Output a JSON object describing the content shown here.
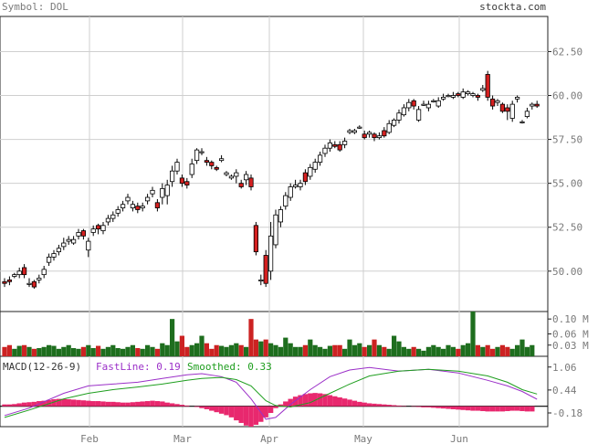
{
  "header": {
    "symbol_label": "Symbol: DOL",
    "site": "stockta.com"
  },
  "chart_data": [
    {
      "type": "candlestick",
      "title": "",
      "ylim": [
        47.7,
        64.5
      ],
      "yticks": [
        "62.50",
        "60.00",
        "57.50",
        "55.00",
        "52.50",
        "50.00"
      ],
      "x_months": [
        "Feb",
        "Mar",
        "Apr",
        "May",
        "Jun"
      ],
      "grid": true,
      "colors": {
        "up": "#ffffff",
        "down": "#d42020",
        "wick": "#000000"
      },
      "candles": [
        [
          49.4,
          49.3,
          49.6,
          49.1
        ],
        [
          49.5,
          49.4,
          49.7,
          49.2
        ],
        [
          49.7,
          49.8,
          49.9,
          49.6
        ],
        [
          49.8,
          50.0,
          50.2,
          49.6
        ],
        [
          50.2,
          49.8,
          50.4,
          49.6
        ],
        [
          49.3,
          49.3,
          49.6,
          49.1
        ],
        [
          49.4,
          49.1,
          49.5,
          49.0
        ],
        [
          49.5,
          49.6,
          49.8,
          49.3
        ],
        [
          49.8,
          50.1,
          50.3,
          49.6
        ],
        [
          50.5,
          50.8,
          51.0,
          50.3
        ],
        [
          50.8,
          51.0,
          51.2,
          50.6
        ],
        [
          51.1,
          51.3,
          51.5,
          50.9
        ],
        [
          51.4,
          51.6,
          51.9,
          51.2
        ],
        [
          51.7,
          51.8,
          52.0,
          51.5
        ],
        [
          51.6,
          51.8,
          52.0,
          51.5
        ],
        [
          52.0,
          52.2,
          52.4,
          51.8
        ],
        [
          52.3,
          52.0,
          52.4,
          51.8
        ],
        [
          51.2,
          51.7,
          51.9,
          50.8
        ],
        [
          52.2,
          52.4,
          52.6,
          52.0
        ],
        [
          52.6,
          52.4,
          52.7,
          52.1
        ],
        [
          52.3,
          52.6,
          52.8,
          52.1
        ],
        [
          52.8,
          53.0,
          53.2,
          52.6
        ],
        [
          53.0,
          53.2,
          53.4,
          52.8
        ],
        [
          53.3,
          53.5,
          53.7,
          53.1
        ],
        [
          53.6,
          53.8,
          54.0,
          53.4
        ],
        [
          54.0,
          54.2,
          54.4,
          53.8
        ],
        [
          53.6,
          53.8,
          54.0,
          53.4
        ],
        [
          53.7,
          53.5,
          53.9,
          53.3
        ],
        [
          53.6,
          53.7,
          53.9,
          53.4
        ],
        [
          54.0,
          54.2,
          54.4,
          53.8
        ],
        [
          54.4,
          54.6,
          54.8,
          54.2
        ],
        [
          53.9,
          53.6,
          54.1,
          53.4
        ],
        [
          54.2,
          54.7,
          55.0,
          53.8
        ],
        [
          54.3,
          54.9,
          55.2,
          53.8
        ],
        [
          55.1,
          55.7,
          56.0,
          54.8
        ],
        [
          55.7,
          56.2,
          56.4,
          55.5
        ],
        [
          55.3,
          55.0,
          55.5,
          54.8
        ],
        [
          55.1,
          54.9,
          55.3,
          54.7
        ],
        [
          55.5,
          56.1,
          56.4,
          55.3
        ],
        [
          56.3,
          56.9,
          57.0,
          56.1
        ],
        [
          56.8,
          56.8,
          57.0,
          56.6
        ],
        [
          56.3,
          56.2,
          56.5,
          56.0
        ],
        [
          56.2,
          56.0,
          56.3,
          55.8
        ],
        [
          55.9,
          55.8,
          56.0,
          55.7
        ],
        [
          56.3,
          56.4,
          56.6,
          56.2
        ],
        [
          55.5,
          55.6,
          55.7,
          55.4
        ],
        [
          55.3,
          55.4,
          55.5,
          55.2
        ],
        [
          55.4,
          55.6,
          55.8,
          55.0
        ],
        [
          55.0,
          54.8,
          55.2,
          54.7
        ],
        [
          55.2,
          55.5,
          55.7,
          54.9
        ],
        [
          55.3,
          54.8,
          55.5,
          54.6
        ],
        [
          52.6,
          51.1,
          52.8,
          50.9
        ],
        [
          49.5,
          49.5,
          49.8,
          49.2
        ],
        [
          50.9,
          49.3,
          51.2,
          49.1
        ],
        [
          50.0,
          52.0,
          52.8,
          49.5
        ],
        [
          51.5,
          53.2,
          53.5,
          51.3
        ],
        [
          52.8,
          53.5,
          53.7,
          52.5
        ],
        [
          53.7,
          54.3,
          54.5,
          53.5
        ],
        [
          54.2,
          54.8,
          55.0,
          54.0
        ],
        [
          54.8,
          54.9,
          55.2,
          54.7
        ],
        [
          54.8,
          55.0,
          55.2,
          54.6
        ],
        [
          55.6,
          55.1,
          55.8,
          54.9
        ],
        [
          55.4,
          55.9,
          56.1,
          55.2
        ],
        [
          55.8,
          56.2,
          56.4,
          55.6
        ],
        [
          56.2,
          56.6,
          56.8,
          56.0
        ],
        [
          56.7,
          57.0,
          57.2,
          56.5
        ],
        [
          57.0,
          57.3,
          57.5,
          56.8
        ],
        [
          57.2,
          57.1,
          57.4,
          57.0
        ],
        [
          57.2,
          56.9,
          57.4,
          56.8
        ],
        [
          57.2,
          57.4,
          57.6,
          57.0
        ],
        [
          57.9,
          58.0,
          58.1,
          57.8
        ],
        [
          57.9,
          58.0,
          58.1,
          57.8
        ],
        [
          58.2,
          58.2,
          58.3,
          58.1
        ],
        [
          57.8,
          57.6,
          58.0,
          57.5
        ],
        [
          57.8,
          57.9,
          58.0,
          57.6
        ],
        [
          57.8,
          57.6,
          57.9,
          57.4
        ],
        [
          57.6,
          57.7,
          57.9,
          57.5
        ],
        [
          58.0,
          57.7,
          58.2,
          57.6
        ],
        [
          57.9,
          58.4,
          58.6,
          57.8
        ],
        [
          58.3,
          58.6,
          58.7,
          58.2
        ],
        [
          58.6,
          59.0,
          59.2,
          58.4
        ],
        [
          58.9,
          59.3,
          59.5,
          58.8
        ],
        [
          59.3,
          59.6,
          59.8,
          59.1
        ],
        [
          59.7,
          59.4,
          59.8,
          59.2
        ],
        [
          58.6,
          59.2,
          59.4,
          58.5
        ],
        [
          59.5,
          59.5,
          59.7,
          59.4
        ],
        [
          59.3,
          59.5,
          59.7,
          59.1
        ],
        [
          59.7,
          59.7,
          59.8,
          59.6
        ],
        [
          59.4,
          59.7,
          59.9,
          59.3
        ],
        [
          59.8,
          59.9,
          60.1,
          59.7
        ],
        [
          60.0,
          60.0,
          60.1,
          59.9
        ],
        [
          59.9,
          60.0,
          60.2,
          59.8
        ],
        [
          60.1,
          60.0,
          60.2,
          59.9
        ],
        [
          59.9,
          60.2,
          60.4,
          59.8
        ],
        [
          60.1,
          60.2,
          60.3,
          60.0
        ],
        [
          60.0,
          60.1,
          60.2,
          59.9
        ],
        [
          60.0,
          59.9,
          60.1,
          59.7
        ],
        [
          60.3,
          60.4,
          60.6,
          60.2
        ],
        [
          61.2,
          59.9,
          61.4,
          59.7
        ],
        [
          59.8,
          59.4,
          60.0,
          59.2
        ],
        [
          59.6,
          59.7,
          59.8,
          59.4
        ],
        [
          59.5,
          59.1,
          59.6,
          59.0
        ],
        [
          59.3,
          59.1,
          59.5,
          58.6
        ],
        [
          58.7,
          59.5,
          59.7,
          58.5
        ],
        [
          59.8,
          59.9,
          60.0,
          59.6
        ],
        [
          58.5,
          58.5,
          58.6,
          58.4
        ],
        [
          58.8,
          59.1,
          59.3,
          58.7
        ],
        [
          59.4,
          59.5,
          59.6,
          59.2
        ],
        [
          59.5,
          59.4,
          59.7,
          59.3
        ]
      ]
    },
    {
      "type": "bar",
      "title": "",
      "ylim": [
        0,
        0.12
      ],
      "yticks": [
        "0.10 M",
        "0.06 M",
        "0.03 M"
      ],
      "colors": {
        "up": "#1e6e1e",
        "down": "#cc2222"
      },
      "values": [
        0.025,
        0.03,
        0.02,
        0.028,
        0.03,
        0.025,
        0.02,
        0.022,
        0.025,
        0.03,
        0.028,
        0.02,
        0.025,
        0.03,
        0.022,
        0.02,
        0.025,
        0.03,
        0.022,
        0.028,
        0.02,
        0.025,
        0.03,
        0.022,
        0.02,
        0.025,
        0.03,
        0.022,
        0.02,
        0.03,
        0.025,
        0.02,
        0.035,
        0.03,
        0.1,
        0.04,
        0.055,
        0.025,
        0.03,
        0.035,
        0.055,
        0.035,
        0.02,
        0.03,
        0.028,
        0.025,
        0.03,
        0.035,
        0.03,
        0.025,
        0.1,
        0.045,
        0.04,
        0.045,
        0.035,
        0.03,
        0.025,
        0.05,
        0.035,
        0.025,
        0.025,
        0.03,
        0.045,
        0.03,
        0.025,
        0.02,
        0.028,
        0.03,
        0.03,
        0.02,
        0.045,
        0.03,
        0.035,
        0.025,
        0.03,
        0.045,
        0.03,
        0.025,
        0.02,
        0.055,
        0.04,
        0.025,
        0.02,
        0.025,
        0.02,
        0.015,
        0.025,
        0.03,
        0.025,
        0.02,
        0.03,
        0.025,
        0.02,
        0.03,
        0.035,
        0.12,
        0.03,
        0.025,
        0.03,
        0.02,
        0.025,
        0.03,
        0.025,
        0.02,
        0.03,
        0.045,
        0.025,
        0.03
      ]
    },
    {
      "type": "line",
      "title": "MACD(12-26-9)",
      "ylim": [
        -0.55,
        1.35
      ],
      "yticks": [
        "1.06",
        "0.44",
        "-0.18"
      ],
      "series": [
        {
          "name": "FastLine: 0.19",
          "color": "#9b30c8",
          "points": [
            [
              0,
              -0.25
            ],
            [
              5,
              -0.05
            ],
            [
              12,
              0.35
            ],
            [
              17,
              0.55
            ],
            [
              22,
              0.6
            ],
            [
              27,
              0.65
            ],
            [
              32,
              0.75
            ],
            [
              37,
              0.85
            ],
            [
              40,
              0.88
            ],
            [
              44,
              0.8
            ],
            [
              47,
              0.65
            ],
            [
              50,
              0.2
            ],
            [
              53,
              -0.35
            ],
            [
              55,
              -0.3
            ],
            [
              58,
              0.05
            ],
            [
              62,
              0.45
            ],
            [
              66,
              0.8
            ],
            [
              70,
              0.98
            ],
            [
              74,
              1.05
            ],
            [
              80,
              0.95
            ],
            [
              86,
              1.0
            ],
            [
              92,
              0.9
            ],
            [
              98,
              0.7
            ],
            [
              102,
              0.55
            ],
            [
              105,
              0.4
            ],
            [
              108,
              0.19
            ]
          ]
        },
        {
          "name": "Smoothed: 0.33",
          "color": "#1e9e1e",
          "points": [
            [
              0,
              -0.3
            ],
            [
              5,
              -0.1
            ],
            [
              12,
              0.2
            ],
            [
              17,
              0.35
            ],
            [
              22,
              0.45
            ],
            [
              27,
              0.52
            ],
            [
              32,
              0.6
            ],
            [
              37,
              0.7
            ],
            [
              40,
              0.75
            ],
            [
              44,
              0.78
            ],
            [
              47,
              0.72
            ],
            [
              50,
              0.55
            ],
            [
              53,
              0.15
            ],
            [
              55,
              0.02
            ],
            [
              58,
              -0.02
            ],
            [
              62,
              0.1
            ],
            [
              66,
              0.35
            ],
            [
              70,
              0.6
            ],
            [
              74,
              0.82
            ],
            [
              80,
              0.95
            ],
            [
              86,
              1.0
            ],
            [
              92,
              0.95
            ],
            [
              98,
              0.82
            ],
            [
              102,
              0.65
            ],
            [
              105,
              0.45
            ],
            [
              108,
              0.33
            ]
          ]
        }
      ],
      "histogram_color": "#e8286e",
      "histogram": [
        0.05,
        0.05,
        0.06,
        0.08,
        0.1,
        0.11,
        0.12,
        0.14,
        0.15,
        0.17,
        0.19,
        0.2,
        0.2,
        0.19,
        0.18,
        0.17,
        0.16,
        0.15,
        0.14,
        0.14,
        0.13,
        0.12,
        0.12,
        0.11,
        0.1,
        0.1,
        0.11,
        0.12,
        0.13,
        0.14,
        0.15,
        0.14,
        0.13,
        0.1,
        0.08,
        0.06,
        0.04,
        0.02,
        0.0,
        -0.02,
        -0.05,
        -0.08,
        -0.12,
        -0.16,
        -0.2,
        -0.24,
        -0.3,
        -0.38,
        -0.45,
        -0.52,
        -0.55,
        -0.5,
        -0.42,
        -0.3,
        -0.18,
        -0.05,
        0.05,
        0.13,
        0.2,
        0.26,
        0.3,
        0.33,
        0.35,
        0.36,
        0.35,
        0.33,
        0.3,
        0.27,
        0.24,
        0.21,
        0.18,
        0.15,
        0.12,
        0.1,
        0.08,
        0.07,
        0.06,
        0.05,
        0.04,
        0.03,
        0.02,
        0.01,
        0.0,
        -0.01,
        -0.02,
        -0.03,
        -0.03,
        -0.04,
        -0.05,
        -0.06,
        -0.07,
        -0.08,
        -0.09,
        -0.1,
        -0.11,
        -0.12,
        -0.12,
        -0.13,
        -0.14,
        -0.14,
        -0.14,
        -0.14,
        -0.13,
        -0.12,
        -0.12,
        -0.13,
        -0.14,
        -0.14
      ]
    }
  ]
}
